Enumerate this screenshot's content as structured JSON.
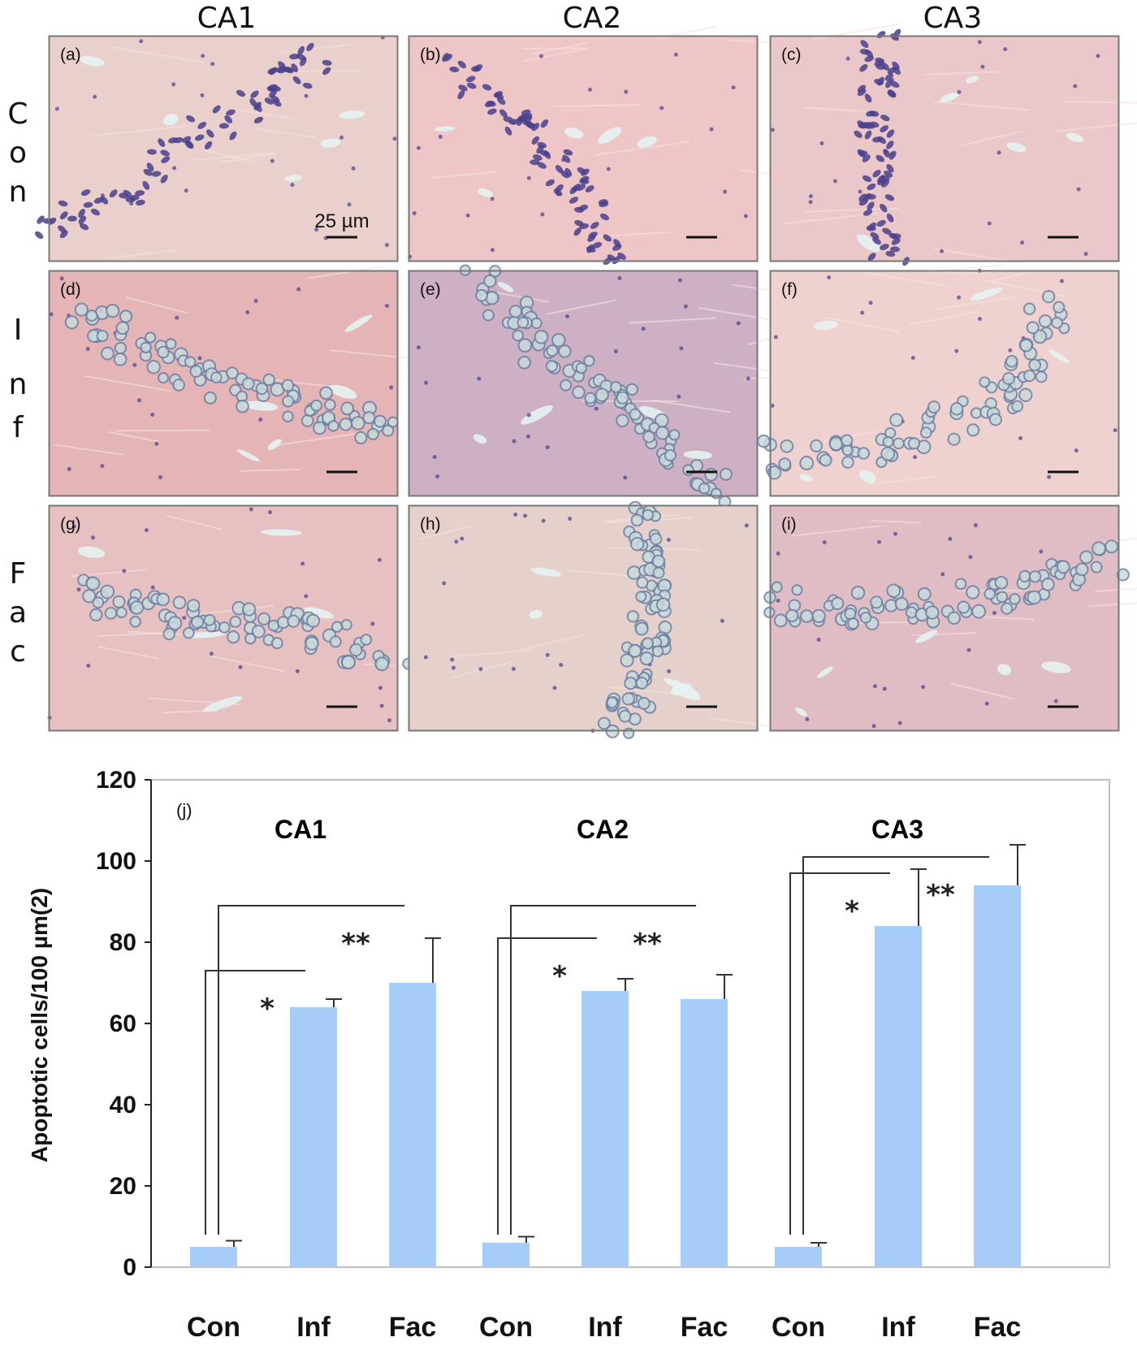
{
  "micrographs": {
    "columns": [
      "CA1",
      "CA2",
      "CA3"
    ],
    "rows": [
      {
        "letters": [
          "C",
          "o",
          "n"
        ]
      },
      {
        "letters": [
          "I",
          "n",
          "f"
        ]
      },
      {
        "letters": [
          "F",
          "a",
          "c"
        ]
      }
    ],
    "panel_labels": [
      "(a)",
      "(b)",
      "(c)",
      "(d)",
      "(e)",
      "(f)",
      "(g)",
      "(h)",
      "(i)"
    ],
    "scale_bar_label": "25 µm",
    "colors": {
      "tissue": "#e7b8ba",
      "tissue_pale": "#efd3cf",
      "nuclei": "#4a3f8c",
      "nuclei_inf": "#6d7fa3",
      "vessel": "#e6f3f2",
      "frame": "#777777"
    }
  },
  "chart_data": {
    "type": "bar",
    "panel_tag": "(j)",
    "ylabel": "Apoptotic cells/100 µm(2)",
    "ylim": [
      0,
      120
    ],
    "yticks": [
      0,
      20,
      40,
      60,
      80,
      100,
      120
    ],
    "groups": [
      {
        "name": "CA1",
        "categories": [
          "Con",
          "Inf",
          "Fac"
        ],
        "values": [
          5,
          64,
          70
        ],
        "errors": [
          1.5,
          2,
          11
        ]
      },
      {
        "name": "CA2",
        "categories": [
          "Con",
          "Inf",
          "Fac"
        ],
        "values": [
          6,
          68,
          66
        ],
        "errors": [
          1.5,
          3,
          6
        ]
      },
      {
        "name": "CA3",
        "categories": [
          "Con",
          "Inf",
          "Fac"
        ],
        "values": [
          5,
          84,
          94
        ],
        "errors": [
          1,
          14,
          10
        ]
      }
    ],
    "significance": [
      {
        "group": 0,
        "marker": "*",
        "bracket_y": 73,
        "to": 1
      },
      {
        "group": 0,
        "marker": "**",
        "bracket_y": 89,
        "to": 2
      },
      {
        "group": 1,
        "marker": "*",
        "bracket_y": 81,
        "to": 1
      },
      {
        "group": 1,
        "marker": "**",
        "bracket_y": 89,
        "to": 2
      },
      {
        "group": 2,
        "marker": "*",
        "bracket_y": 97,
        "to": 1
      },
      {
        "group": 2,
        "marker": "**",
        "bracket_y": 101,
        "to": 2
      }
    ],
    "bar_color": "#a6cdf7",
    "error_color": "#333333",
    "grid": false
  }
}
